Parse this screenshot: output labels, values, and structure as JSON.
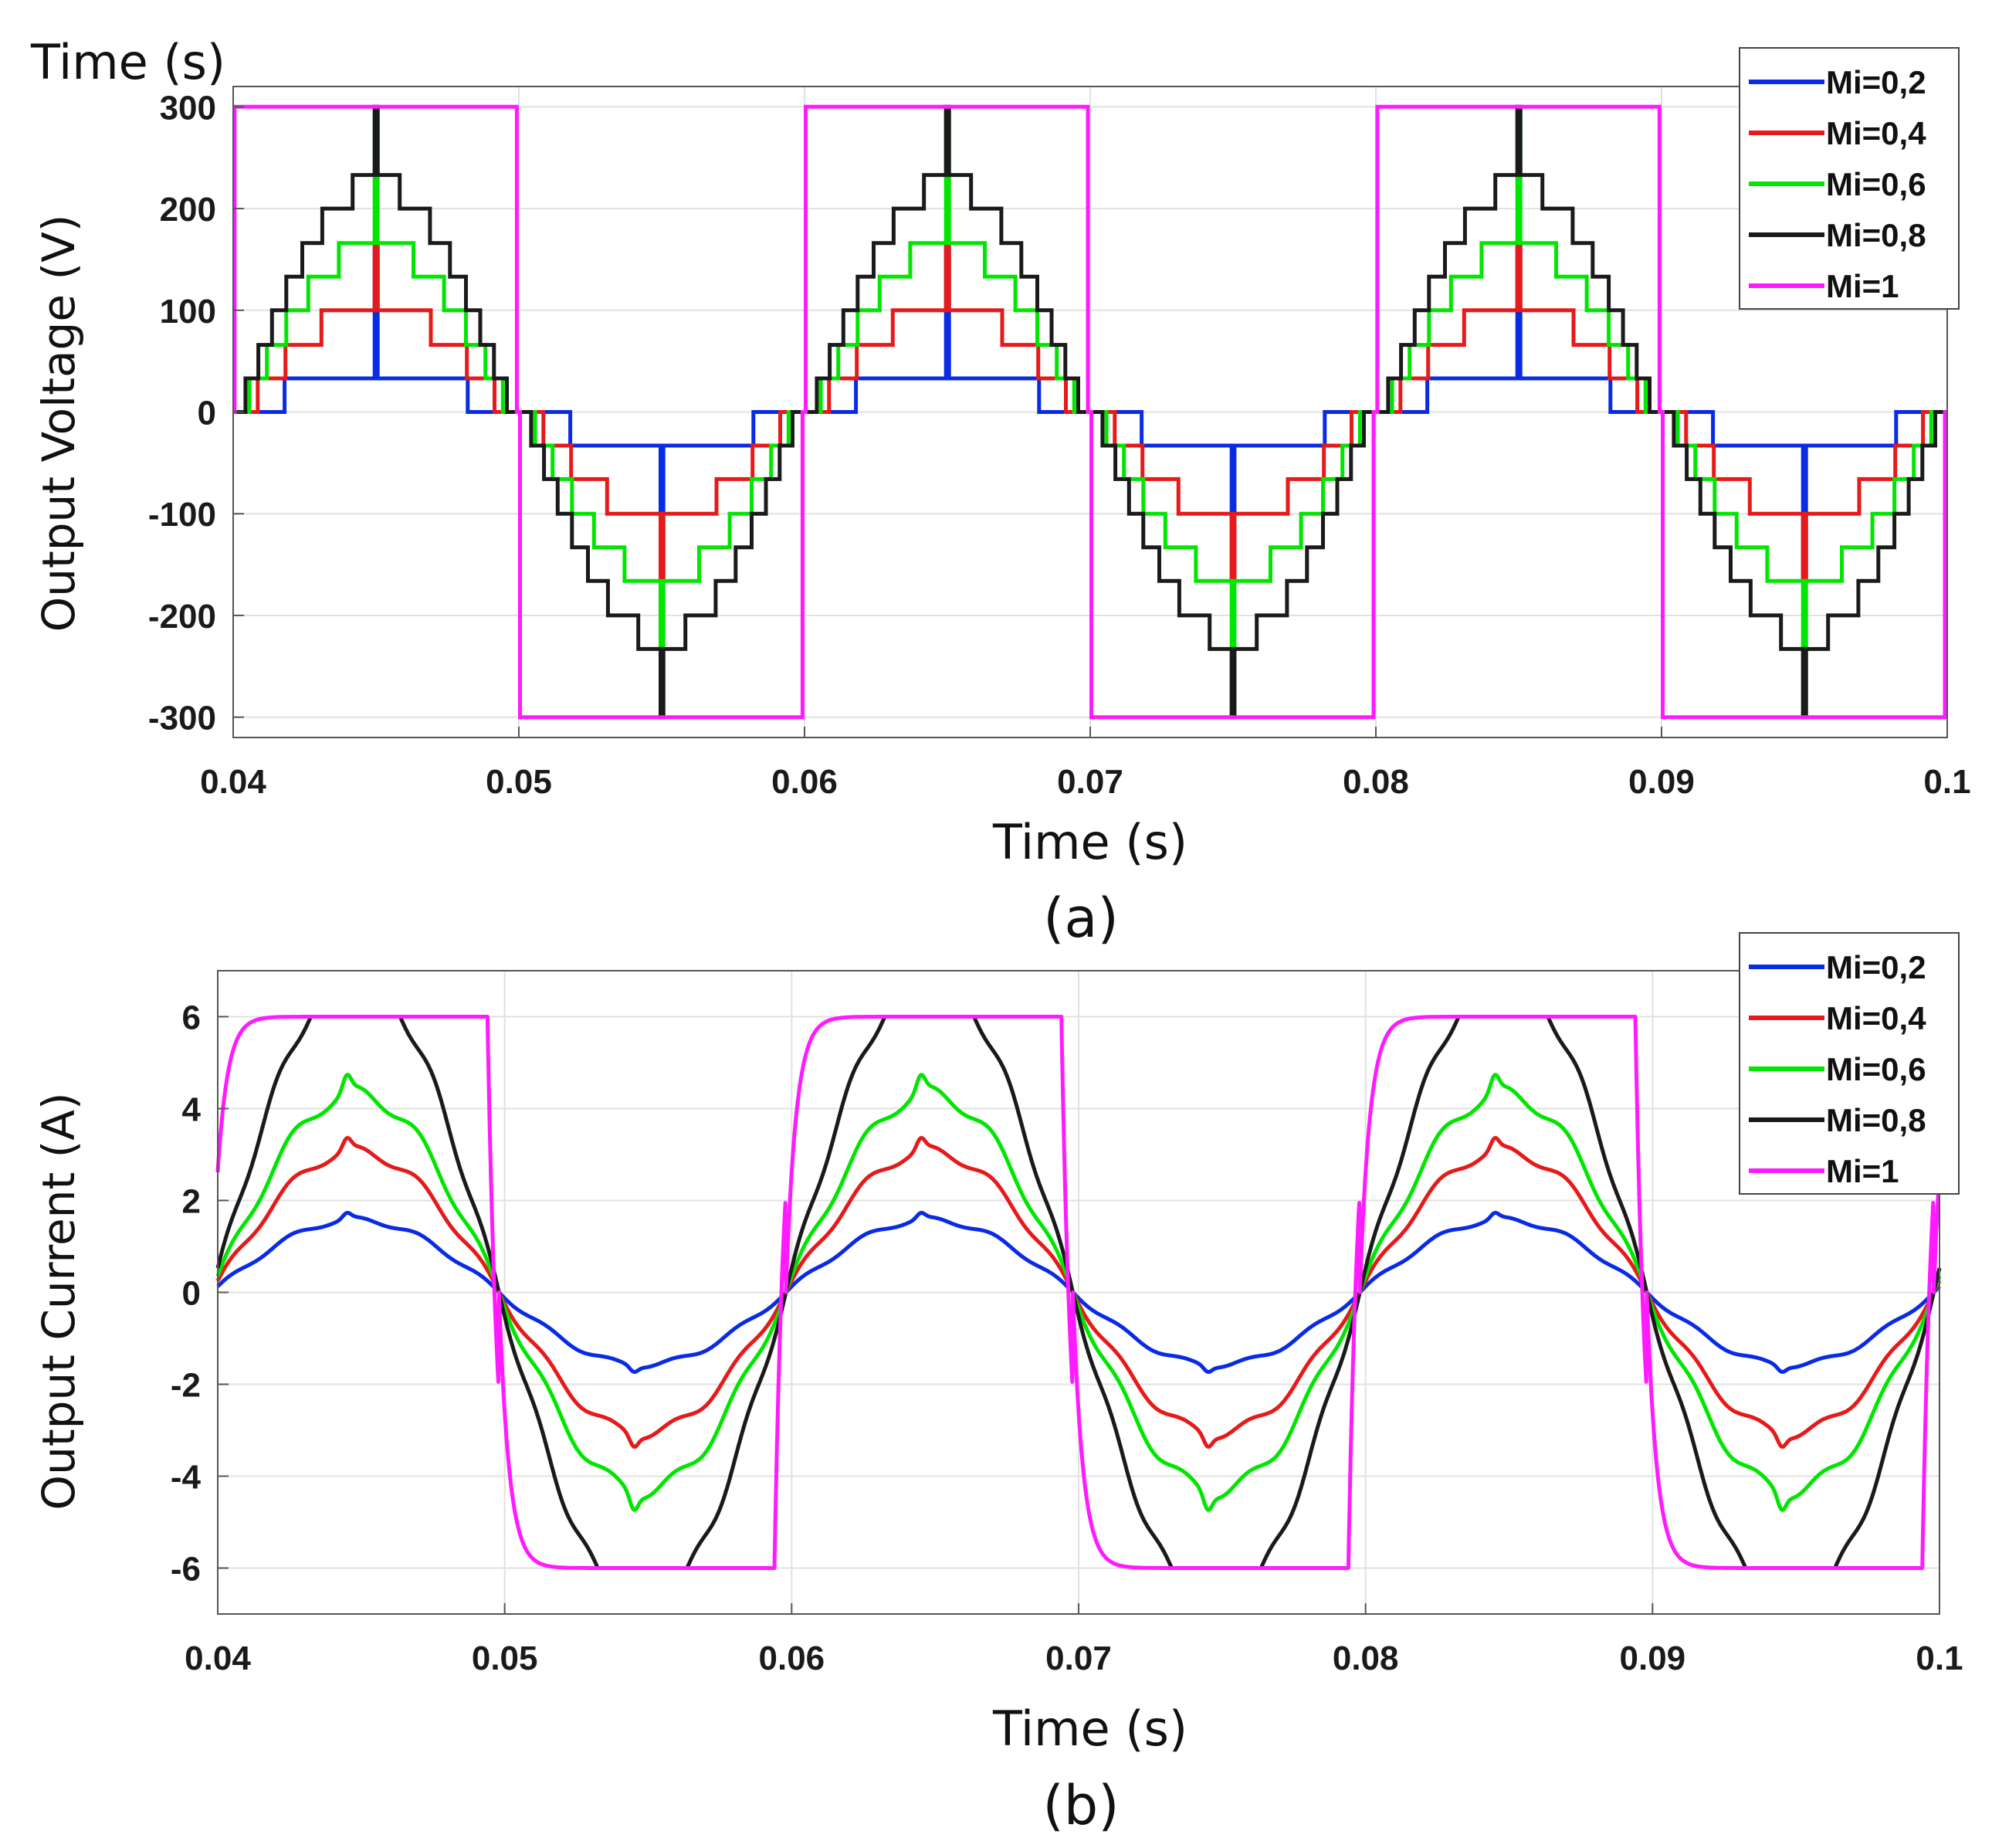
{
  "chart_data": [
    {
      "type": "line",
      "panel_label": "(a)",
      "title_fragment": "Time (s)",
      "xlabel": "Time (s)",
      "ylabel": "Output Voltage (V)",
      "xlim": [
        0.04,
        0.1
      ],
      "ylim": [
        -320,
        320
      ],
      "xticks": [
        0.04,
        0.05,
        0.06,
        0.07,
        0.08,
        0.09,
        0.1
      ],
      "xtick_labels": [
        "0.04",
        "0.05",
        "0.06",
        "0.07",
        "0.08",
        "0.09",
        "0.1"
      ],
      "yticks": [
        300,
        200,
        100,
        0,
        -100,
        -200,
        -300
      ],
      "ytick_labels": [
        "300",
        "200",
        "100",
        "0",
        "-100",
        "-200",
        "-300"
      ],
      "grid": true,
      "legend_position": "top-right",
      "waveform": "staircase",
      "frequency_hz": 50,
      "series": [
        {
          "name": "Mi=0,2",
          "color": "#0a2be6",
          "mi": 0.2
        },
        {
          "name": "Mi=0,4",
          "color": "#e61a1a",
          "mi": 0.4
        },
        {
          "name": "Mi=0,6",
          "color": "#00e600",
          "mi": 0.6
        },
        {
          "name": "Mi=0,8",
          "color": "#1a1a1a",
          "mi": 0.8
        },
        {
          "name": "Mi=1",
          "color": "#ff1aff",
          "mi": 1.0
        }
      ]
    },
    {
      "type": "line",
      "panel_label": "(b)",
      "xlabel": "Time (s)",
      "ylabel": "Output Current (A)",
      "xlim": [
        0.04,
        0.1
      ],
      "ylim": [
        -7,
        7
      ],
      "xticks": [
        0.04,
        0.05,
        0.06,
        0.07,
        0.08,
        0.09,
        0.1
      ],
      "xtick_labels": [
        "0.04",
        "0.05",
        "0.06",
        "0.07",
        "0.08",
        "0.09",
        "0.1"
      ],
      "yticks": [
        6,
        4,
        2,
        0,
        -2,
        -4,
        -6
      ],
      "ytick_labels": [
        "6",
        "4",
        "2",
        "0",
        "-2",
        "-4",
        "-6"
      ],
      "grid": true,
      "legend_position": "top-right",
      "waveform": "smoothed",
      "frequency_hz": 50,
      "series": [
        {
          "name": "Mi=0,2",
          "color": "#0a2be6",
          "mi": 0.2,
          "peak": 1.7
        },
        {
          "name": "Mi=0,4",
          "color": "#e61a1a",
          "mi": 0.4,
          "peak": 3.3
        },
        {
          "name": "Mi=0,6",
          "color": "#00e600",
          "mi": 0.6,
          "peak": 4.65
        },
        {
          "name": "Mi=0,8",
          "color": "#1a1a1a",
          "mi": 0.8,
          "peak": 6.0
        },
        {
          "name": "Mi=1",
          "color": "#ff1aff",
          "mi": 1.0,
          "peak": 6.0
        }
      ]
    }
  ]
}
